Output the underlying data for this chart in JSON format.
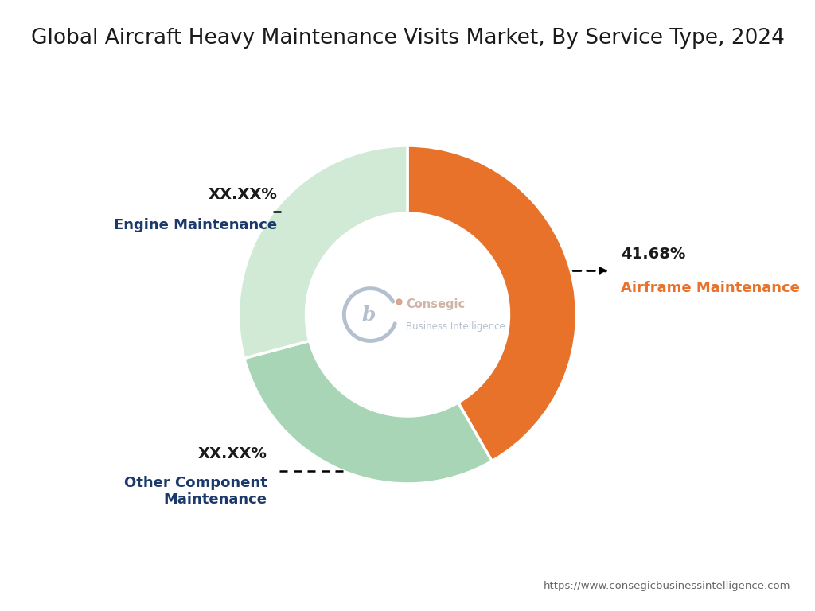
{
  "title": "Global Aircraft Heavy Maintenance Visits Market, By Service Type, 2024",
  "title_color": "#1a1a1a",
  "title_fontsize": 19,
  "slices": [
    {
      "label": "Airframe Maintenance",
      "value": 41.68,
      "color": "#E8722A",
      "pct_display": "41.68%",
      "pct_color": "#1a1a1a",
      "label_color": "#E8722A"
    },
    {
      "label": "Other Component\nMaintenance",
      "value": 29.16,
      "color": "#A8D5B5",
      "pct_display": "XX.XX%",
      "pct_color": "#1a1a1a",
      "label_color": "#1B3A6B"
    },
    {
      "label": "Engine Maintenance",
      "value": 29.16,
      "color": "#D0EAD5",
      "pct_display": "XX.XX%",
      "pct_color": "#1a1a1a",
      "label_color": "#1B3A6B"
    }
  ],
  "watermark_color_logo": "#9BAABF",
  "watermark_color_text": "#C8A898",
  "watermark_text1": "Consegic",
  "watermark_text2": "Business Intelligence",
  "url_text": "https://www.consegicbusinessintelligence.com",
  "url_color": "#666666",
  "bg_color": "#ffffff",
  "donut_width": 0.4,
  "start_angle": 90
}
